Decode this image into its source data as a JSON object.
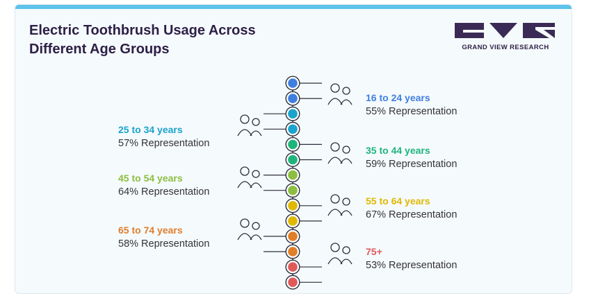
{
  "header": {
    "title_line1": "Electric Toothbrush Usage Across",
    "title_line2": "Different Age Groups"
  },
  "logo": {
    "text": "GRAND VIEW RESEARCH",
    "color": "#3a2a55"
  },
  "chart_data": {
    "type": "infographic",
    "title": "Electric Toothbrush Usage Across Different Age Groups",
    "unit": "% Representation",
    "categories": [
      "16 to 24 years",
      "25 to 34 years",
      "35 to 44 years",
      "45 to 54 years",
      "55 to 64 years",
      "65 to 74 years",
      "75+"
    ],
    "values": [
      55,
      57,
      59,
      64,
      67,
      58,
      53
    ],
    "groups": [
      {
        "label": "16 to 24 years",
        "value": 55,
        "value_text": "55% Representation",
        "side": "right",
        "color": "#3f7fe0",
        "icon": "students-icon"
      },
      {
        "label": "25 to 34 years",
        "value": 57,
        "value_text": "57% Representation",
        "side": "left",
        "color": "#1aa3cc",
        "icon": "couple-flag-icon"
      },
      {
        "label": "35 to 44 years",
        "value": 59,
        "value_text": "59% Representation",
        "side": "right",
        "color": "#1fb57a",
        "icon": "person-stars-icon"
      },
      {
        "label": "45 to 54 years",
        "value": 64,
        "value_text": "64% Representation",
        "side": "left",
        "color": "#8cbf3f",
        "icon": "piggy-bank-icon"
      },
      {
        "label": "55 to 64 years",
        "value": 67,
        "value_text": "67% Representation",
        "side": "right",
        "color": "#e0b800",
        "icon": "older-man-icon"
      },
      {
        "label": "65 to 74 years",
        "value": 58,
        "value_text": "58% Representation",
        "side": "left",
        "color": "#e07e2a",
        "icon": "elder-woman-icon"
      },
      {
        "label": "75+",
        "value": 53,
        "value_text": "53% Representation",
        "side": "right",
        "color": "#e05a5a",
        "icon": "grandparent-child-icon"
      }
    ]
  }
}
